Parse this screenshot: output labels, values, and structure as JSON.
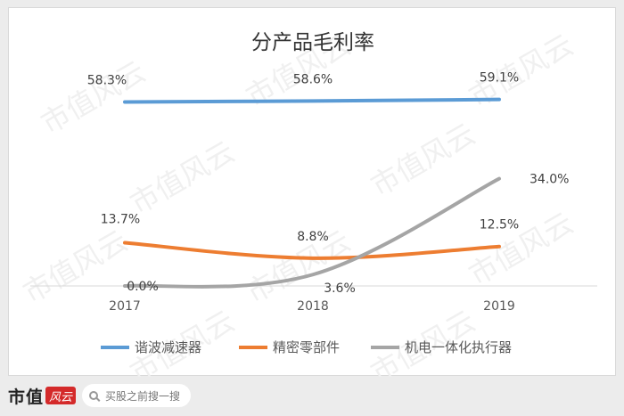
{
  "chart_data": {
    "type": "line",
    "title": "分产品毛利率",
    "categories": [
      "2017",
      "2018",
      "2019"
    ],
    "series": [
      {
        "name": "谐波减速器",
        "values": [
          58.3,
          58.6,
          59.1
        ],
        "labels": [
          "58.3%",
          "58.6%",
          "59.1%"
        ],
        "color": "#5b9bd5"
      },
      {
        "name": "精密零部件",
        "values": [
          13.7,
          8.8,
          12.5
        ],
        "labels": [
          "13.7%",
          "8.8%",
          "12.5%"
        ],
        "color": "#ed7d31"
      },
      {
        "name": "机电一体化执行器",
        "values": [
          0.0,
          3.6,
          34.0
        ],
        "labels": [
          "0.0%",
          "3.6%",
          "34.0%"
        ],
        "color": "#a5a5a5"
      }
    ],
    "ylim": [
      0,
      70
    ],
    "y_axis_visible": false,
    "grid": false,
    "legend_position": "bottom",
    "smooth": true
  },
  "watermark": "市值风云",
  "footer": {
    "brand": "市值",
    "brand_mark": "风云",
    "search_placeholder": "买股之前搜一搜"
  }
}
